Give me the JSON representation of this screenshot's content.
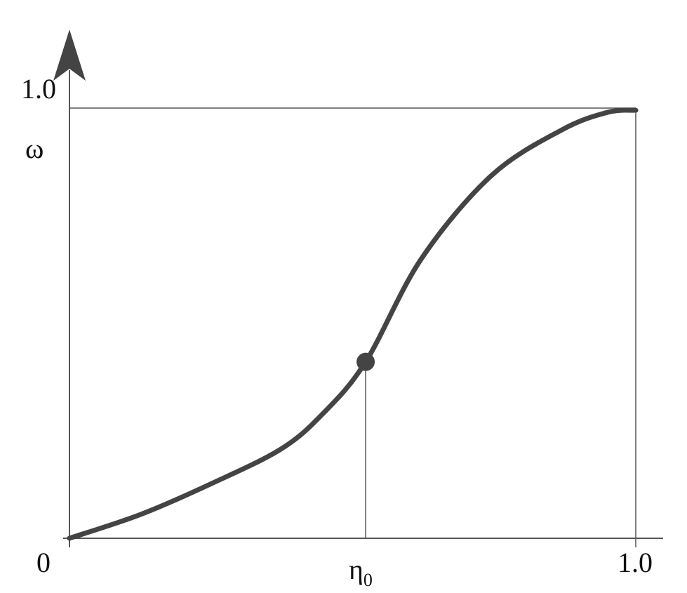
{
  "chart_data": {
    "type": "line",
    "title": "",
    "xlabel": "",
    "ylabel": "ω",
    "xlim": [
      0,
      1.0
    ],
    "ylim": [
      0,
      1.0
    ],
    "grid": false,
    "x_tick_labels": {
      "origin": "0",
      "marked": "η",
      "marked_sub": "0",
      "end": "1.0"
    },
    "y_tick_label": "1.0",
    "marked_point": {
      "x": 0.523,
      "y": 0.41
    },
    "series": [
      {
        "x": [
          0,
          0.125,
          0.249,
          0.373,
          0.447,
          0.523,
          0.621,
          0.745,
          0.869,
          0.95,
          1.0
        ],
        "y": [
          0,
          0.055,
          0.126,
          0.207,
          0.289,
          0.41,
          0.649,
          0.843,
          0.949,
          0.99,
          0.995
        ]
      }
    ],
    "colors": {
      "curve": "#444444",
      "axes": "#555555"
    }
  }
}
